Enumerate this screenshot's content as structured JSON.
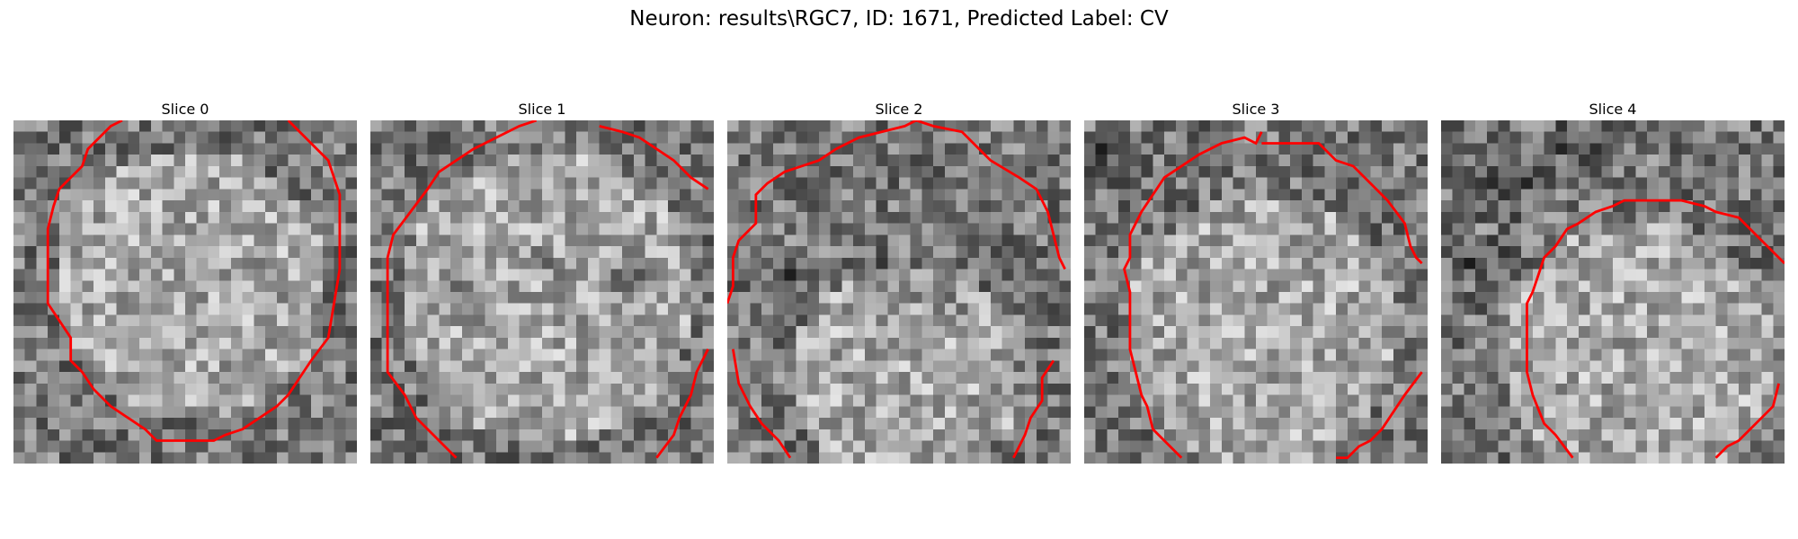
{
  "title": "Neuron: results\\RGC7, ID: 1671, Predicted Label: CV",
  "contour_color": "#ff0000",
  "chart_data": {
    "type": "heatmap",
    "colormap": "gray",
    "grid_size": [
      30,
      30
    ],
    "grid": false,
    "panels": [
      {
        "title": "Slice 0",
        "contour": [
          [
            9.5,
            0
          ],
          [
            8.5,
            0.5
          ],
          [
            7.5,
            1.5
          ],
          [
            6.5,
            2.5
          ],
          [
            6,
            4
          ],
          [
            5,
            5
          ],
          [
            4,
            6
          ],
          [
            3.5,
            7.5
          ],
          [
            3,
            9.5
          ],
          [
            3,
            11
          ],
          [
            3,
            13
          ],
          [
            3,
            16
          ],
          [
            4,
            17.5
          ],
          [
            5,
            19
          ],
          [
            5,
            21
          ],
          [
            6,
            22
          ],
          [
            7,
            23.5
          ],
          [
            8.5,
            25
          ],
          [
            10,
            26
          ],
          [
            11.5,
            27
          ],
          [
            12.5,
            28
          ],
          [
            14,
            28
          ],
          [
            16,
            28
          ],
          [
            17.5,
            28
          ],
          [
            18.5,
            27.5
          ],
          [
            20,
            27
          ],
          [
            21.5,
            26
          ],
          [
            23,
            25
          ],
          [
            24,
            24
          ],
          [
            25,
            22.5
          ],
          [
            26,
            21
          ],
          [
            27.5,
            19
          ],
          [
            28,
            16
          ],
          [
            28.5,
            13
          ],
          [
            28.5,
            10
          ],
          [
            28.5,
            6.5
          ],
          [
            28,
            5
          ],
          [
            27.5,
            3.5
          ],
          [
            26.5,
            2.5
          ],
          [
            25.5,
            1.5
          ],
          [
            24,
            0
          ]
        ],
        "bright_center": [
          15,
          14
        ],
        "bright_r": 12,
        "dark": []
      },
      {
        "title": "Slice 1",
        "contour": [
          [
            14.5,
            0
          ],
          [
            13,
            0.5
          ],
          [
            11,
            1.5
          ],
          [
            9,
            2.5
          ],
          [
            7.5,
            3.5
          ],
          [
            6,
            4.5
          ],
          [
            5,
            6
          ],
          [
            3.5,
            8
          ],
          [
            2,
            10
          ],
          [
            1.5,
            12
          ],
          [
            1.5,
            15
          ],
          [
            1.5,
            19
          ],
          [
            1.5,
            22
          ],
          [
            3,
            24
          ],
          [
            4,
            26
          ],
          [
            5.5,
            27.5
          ],
          [
            7.5,
            29.5
          ]
        ],
        "contour2": [
          [
            20,
            0.5
          ],
          [
            22,
            1
          ],
          [
            23.5,
            1.5
          ],
          [
            25,
            2.5
          ],
          [
            26.5,
            3.5
          ],
          [
            28,
            5
          ],
          [
            29.5,
            6
          ]
        ],
        "contour3": [
          [
            29.5,
            20
          ],
          [
            28.5,
            22
          ],
          [
            28,
            24
          ],
          [
            27,
            26
          ],
          [
            26.5,
            27.5
          ],
          [
            25,
            29.5
          ]
        ],
        "bright_center": [
          15,
          15
        ],
        "bright_r": 13,
        "dark": [
          [
            8,
            14,
            3
          ],
          [
            15,
            12,
            2
          ],
          [
            22,
            13,
            3
          ]
        ]
      },
      {
        "title": "Slice 2",
        "contour": [
          [
            16.5,
            0
          ],
          [
            15.5,
            0.5
          ],
          [
            13.5,
            1
          ],
          [
            11.5,
            1.5
          ],
          [
            9.5,
            2.5
          ],
          [
            8,
            3.5
          ],
          [
            6.5,
            4
          ],
          [
            5,
            4.5
          ],
          [
            3.5,
            5.5
          ],
          [
            2.5,
            6.5
          ],
          [
            2.5,
            9
          ],
          [
            1,
            10.5
          ],
          [
            0.5,
            12
          ],
          [
            0.5,
            14.5
          ],
          [
            0,
            16
          ]
        ],
        "contour2": [
          [
            16.5,
            0
          ],
          [
            18,
            0.5
          ],
          [
            20.5,
            1
          ],
          [
            22,
            2.5
          ],
          [
            23,
            3.5
          ],
          [
            25.5,
            5
          ],
          [
            27,
            6
          ],
          [
            28,
            8
          ],
          [
            28.5,
            10
          ],
          [
            29,
            12
          ],
          [
            29.5,
            13
          ]
        ],
        "contour3": [
          [
            0.5,
            20
          ],
          [
            1,
            23
          ],
          [
            2,
            25
          ],
          [
            3,
            26.5
          ],
          [
            4.5,
            28
          ],
          [
            5.5,
            29.5
          ]
        ],
        "contour4": [
          [
            28.5,
            21
          ],
          [
            27.5,
            22.5
          ],
          [
            27.5,
            24.5
          ],
          [
            26.5,
            26
          ],
          [
            26,
            27.5
          ],
          [
            25,
            29.5
          ]
        ],
        "bright_center": [
          15,
          22
        ],
        "bright_r": 10,
        "dark": [
          [
            5,
            13,
            3
          ],
          [
            12,
            13,
            3
          ],
          [
            18,
            16,
            3
          ],
          [
            24,
            12,
            3
          ]
        ]
      },
      {
        "title": "Slice 3",
        "contour": [
          [
            15.5,
            1
          ],
          [
            15,
            2
          ],
          [
            14,
            1.5
          ],
          [
            12,
            2
          ],
          [
            10,
            3
          ],
          [
            8.5,
            4
          ],
          [
            7,
            5
          ],
          [
            6,
            6.5
          ],
          [
            5,
            8
          ],
          [
            4,
            10
          ],
          [
            4,
            12
          ],
          [
            3.5,
            13
          ],
          [
            4,
            15
          ],
          [
            4,
            20
          ],
          [
            4.5,
            22
          ],
          [
            5,
            24
          ],
          [
            5.5,
            25
          ],
          [
            6,
            27
          ],
          [
            7.5,
            28.5
          ],
          [
            8.5,
            29.5
          ]
        ],
        "contour2": [
          [
            15.5,
            2
          ],
          [
            17,
            2
          ],
          [
            20.5,
            2
          ],
          [
            22,
            3.5
          ],
          [
            23.5,
            4
          ],
          [
            25,
            5.5
          ],
          [
            26.5,
            7
          ],
          [
            28,
            9
          ],
          [
            28.5,
            11
          ],
          [
            29,
            12
          ],
          [
            29.5,
            12.5
          ]
        ],
        "contour3": [
          [
            29.5,
            22
          ],
          [
            28,
            24
          ],
          [
            27,
            25.5
          ],
          [
            26,
            27
          ],
          [
            25,
            28
          ],
          [
            24,
            28.5
          ],
          [
            23,
            29.5
          ],
          [
            22,
            29.5
          ]
        ],
        "bright_center": [
          15,
          18
        ],
        "bright_r": 12,
        "dark": [
          [
            1,
            3,
            3
          ]
        ]
      },
      {
        "title": "Slice 4",
        "contour": [
          [
            30,
            12.5
          ],
          [
            28.5,
            11
          ],
          [
            27,
            9.5
          ],
          [
            26,
            8.5
          ],
          [
            24,
            8
          ],
          [
            23,
            7.5
          ],
          [
            21,
            7
          ],
          [
            19,
            7
          ],
          [
            16,
            7
          ],
          [
            15,
            7.5
          ],
          [
            13.5,
            8
          ],
          [
            12,
            9
          ],
          [
            11,
            9.5
          ],
          [
            10,
            11
          ],
          [
            9,
            12
          ],
          [
            8.5,
            13.5
          ],
          [
            8,
            15
          ],
          [
            7.5,
            16
          ],
          [
            7.5,
            18
          ],
          [
            7.5,
            22
          ],
          [
            8,
            24
          ],
          [
            9,
            26.5
          ],
          [
            10,
            27.5
          ],
          [
            11.5,
            29.5
          ]
        ],
        "contour2": [
          [
            29.5,
            23
          ],
          [
            29,
            25
          ],
          [
            28,
            26
          ],
          [
            27,
            27
          ],
          [
            26,
            28
          ],
          [
            25,
            28.5
          ],
          [
            24,
            29.5
          ]
        ],
        "bright_center": [
          17,
          20
        ],
        "bright_r": 12,
        "dark": [
          [
            5,
            4,
            5
          ],
          [
            12,
            2,
            4
          ],
          [
            3,
            12,
            3
          ]
        ]
      }
    ]
  }
}
